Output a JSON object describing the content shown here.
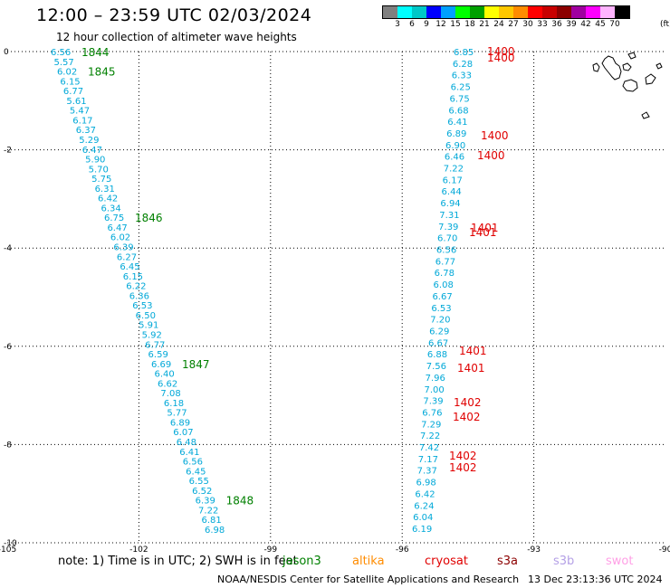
{
  "title": "12:00 – 23:59 UTC 02/03/2024",
  "subtitle": "12 hour collection of altimeter wave heights",
  "colorbar": {
    "colors": [
      "#808080",
      "#00ffff",
      "#00c8c8",
      "#0000ff",
      "#00a0ff",
      "#00ff00",
      "#00a000",
      "#ffff00",
      "#ffc800",
      "#ff8c00",
      "#ff0000",
      "#c80000",
      "#8c0000",
      "#a000a0",
      "#ff00ff",
      "#ffb4ff",
      "#000000"
    ],
    "labels": [
      "3",
      "6",
      "9",
      "12",
      "15",
      "18",
      "21",
      "24",
      "27",
      "30",
      "33",
      "36",
      "39",
      "42",
      "45",
      "70"
    ],
    "unit": "(ft)"
  },
  "map": {
    "x_ticks": [
      "-105",
      "-102",
      "-99",
      "-96",
      "-93",
      "-90"
    ],
    "y_ticks": [
      "0",
      "-2",
      "-4",
      "-6",
      "-8",
      "-10"
    ],
    "lon_range": [
      -105,
      -90
    ],
    "lat_range": [
      0,
      -10
    ]
  },
  "wave_colors": {
    "height": "#00a8d8",
    "time_jason": "#008000",
    "time_s3a": "#e00000"
  },
  "track_west_heights": [
    "6.56",
    "5.57",
    "6.02",
    "6.15",
    "6.77",
    "5.61",
    "5.47",
    "6.17",
    "6.37",
    "5.29",
    "6.47",
    "5.90",
    "5.70",
    "5.75",
    "6.31",
    "6.42",
    "6.34",
    "6.75",
    "6.47",
    "6.02",
    "6.39",
    "6.27",
    "6.45",
    "6.15",
    "6.22",
    "6.36",
    "6.53",
    "6.50",
    "5.91",
    "5.92",
    "6.77",
    "6.59",
    "6.69",
    "6.40",
    "6.62",
    "7.08",
    "6.18",
    "5.77",
    "6.89",
    "6.07",
    "6.48",
    "6.41",
    "6.56",
    "6.45",
    "6.55",
    "6.52",
    "6.39",
    "7.22",
    "6.81",
    "6.98"
  ],
  "track_west_times": [
    "1844",
    "1845",
    "1846",
    "1847",
    "1848"
  ],
  "track_east_heights": [
    "6.85",
    "6.28",
    "6.33",
    "6.25",
    "6.75",
    "6.68",
    "6.41",
    "6.89",
    "6.90",
    "6.46",
    "7.22",
    "6.17",
    "6.44",
    "6.94",
    "7.31",
    "7.39",
    "6.70",
    "6.56",
    "6.77",
    "6.78",
    "6.08",
    "6.67",
    "6.53",
    "7.20",
    "6.29",
    "6.67",
    "6.88",
    "7.56",
    "7.96",
    "7.00",
    "7.39",
    "6.76",
    "7.29",
    "7.22",
    "7.42",
    "7.17",
    "7.37",
    "6.98",
    "6.42",
    "6.24",
    "6.04",
    "6.19"
  ],
  "track_east_times": [
    "1400",
    "1400",
    "1400",
    "1400",
    "1401",
    "1401",
    "1401",
    "1401",
    "1402",
    "1402",
    "1402",
    "1402"
  ],
  "note": "note:  1) Time is in UTC; 2) SWH is in feet",
  "legend": [
    {
      "label": "jason3",
      "color": "#008000"
    },
    {
      "label": "altika",
      "color": "#ff8c00"
    },
    {
      "label": "cryosat",
      "color": "#e00000"
    },
    {
      "label": "s3a",
      "color": "#8c0000"
    },
    {
      "label": "s3b",
      "color": "#b4a0e6"
    },
    {
      "label": "swot",
      "color": "#ffa0e6"
    }
  ],
  "credit": "NOAA/NESDIS Center for Satellite Applications and Research",
  "timestamp": "13 Dec 23:13:36 UTC 2024"
}
